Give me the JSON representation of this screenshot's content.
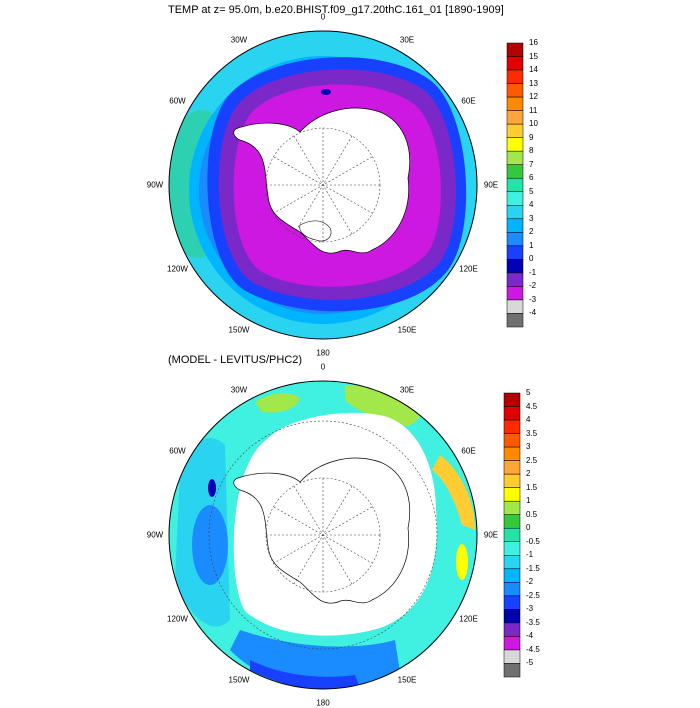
{
  "panels": [
    {
      "title": "TEMP at z=  95.0m, b.e20.BHIST.f09_g17.20thC.161_01 [1890-1909]",
      "longitude_labels": [
        "0",
        "30E",
        "60E",
        "90E",
        "120E",
        "150E",
        "180",
        "150W",
        "120W",
        "90W",
        "60W",
        "30W"
      ],
      "colorbar": {
        "labels": [
          "16",
          "15",
          "14",
          "13",
          "12",
          "11",
          "10",
          "9",
          "8",
          "7",
          "6",
          "5",
          "4",
          "3",
          "2",
          "1",
          "0",
          "-1",
          "-2",
          "-3",
          "-4"
        ],
        "colors": [
          "#b00000",
          "#e00000",
          "#ff2a00",
          "#ff5a00",
          "#ff8a00",
          "#ffa63a",
          "#ffcc33",
          "#ffff00",
          "#a2e84a",
          "#34c83c",
          "#20e4a8",
          "#40f0e0",
          "#2ad4f0",
          "#00b4ff",
          "#1a8cff",
          "#1840ff",
          "#0000b4",
          "#7a28c8",
          "#cc18e0",
          "#d8d8d8",
          "#707070"
        ]
      },
      "field_colors": {
        "land": "#ffffff",
        "coast": "#000000",
        "grid": "#444444"
      }
    },
    {
      "title": "(MODEL - LEVITUS/PHC2)",
      "longitude_labels": [
        "0",
        "30E",
        "60E",
        "90E",
        "120E",
        "150E",
        "180",
        "150W",
        "120W",
        "90W",
        "60W",
        "30W"
      ],
      "colorbar": {
        "labels": [
          "5",
          "4.5",
          "4",
          "3.5",
          "3",
          "2.5",
          "2",
          "1.5",
          "1",
          "0.5",
          "0",
          "-0.5",
          "-1",
          "-1.5",
          "-2",
          "-2.5",
          "-3",
          "-3.5",
          "-4",
          "-4.5",
          "-5"
        ],
        "colors": [
          "#b00000",
          "#e00000",
          "#ff2a00",
          "#ff5a00",
          "#ff8a00",
          "#ffa63a",
          "#ffcc33",
          "#ffff00",
          "#a2e84a",
          "#34c83c",
          "#20e4a8",
          "#40f0e0",
          "#2ad4f0",
          "#00b4ff",
          "#1a8cff",
          "#1840ff",
          "#0000b4",
          "#7a28c8",
          "#cc18e0",
          "#d8d8d8",
          "#707070"
        ]
      },
      "field_colors": {
        "land": "#ffffff",
        "coast": "#000000",
        "grid": "#444444"
      }
    }
  ]
}
